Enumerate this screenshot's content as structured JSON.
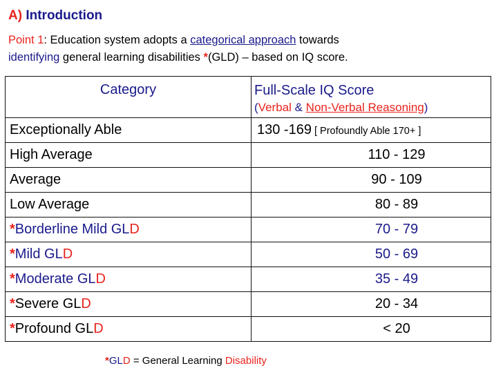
{
  "title": {
    "label": "A)",
    "text": "Introduction"
  },
  "intro": {
    "point_label": "Point 1",
    "text_a": ": Education system adopts a ",
    "link_categorical": "categorical approach",
    "text_b": " towards ",
    "word_identifying": "identifying",
    "text_c": " general learning disabilities ",
    "star": "*",
    "text_d": "(GLD) – based on IQ score."
  },
  "table": {
    "header": {
      "category": "Category",
      "score_title": "Full-Scale IQ Score",
      "open_paren": "(",
      "verbal": "Verbal",
      "amp": " & ",
      "nonverbal": "Non-Verbal Reasoning",
      "close_paren": ")"
    },
    "rows": [
      {
        "star": "",
        "name": "Exceptionally Able",
        "d": "",
        "range": "130 -169",
        "note": " [ Profoundly Able 170+ ]"
      },
      {
        "star": "",
        "name": "High Average",
        "d": "",
        "range": "110 - 129"
      },
      {
        "star": "",
        "name": "Average",
        "d": "",
        "range": "90 - 109"
      },
      {
        "star": "",
        "name": "Low Average",
        "d": "",
        "range": "80 - 89"
      },
      {
        "star": "*",
        "name": "Borderline Mild GL",
        "d": "D",
        "range": "70 - 79"
      },
      {
        "star": "*",
        "name": "Mild GL",
        "d": "D",
        "range": "50 - 69"
      },
      {
        "star": "*",
        "name": "Moderate GL",
        "d": "D",
        "range": "35 - 49"
      },
      {
        "star": "*",
        "name": "Severe GL",
        "d": "D",
        "range": "20 - 34"
      },
      {
        "star": "*",
        "name": "Profound GL",
        "d": "D",
        "range": "< 20"
      }
    ]
  },
  "footnote": {
    "star": "*",
    "gl": "GL",
    "d": "D",
    "text": " = General Learning ",
    "disability": "Disability"
  },
  "colors": {
    "red": "#e8231d",
    "blue": "#1a1a8c"
  }
}
